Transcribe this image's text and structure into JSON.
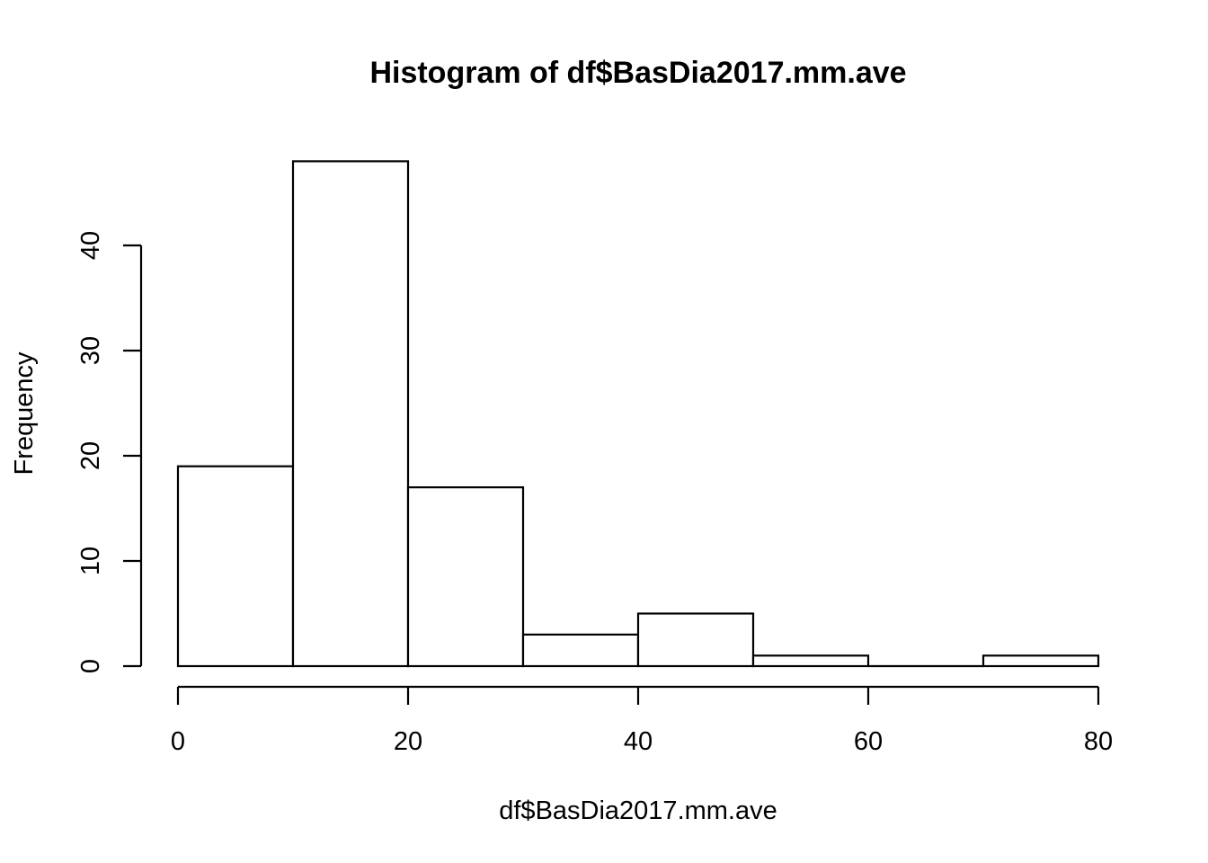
{
  "chart_data": {
    "type": "bar",
    "title": "Histogram of df$BasDia2017.mm.ave",
    "xlabel": "df$BasDia2017.mm.ave",
    "ylabel": "Frequency",
    "bins": [
      {
        "start": 0,
        "end": 10,
        "count": 19
      },
      {
        "start": 10,
        "end": 20,
        "count": 48
      },
      {
        "start": 20,
        "end": 30,
        "count": 17
      },
      {
        "start": 30,
        "end": 40,
        "count": 3
      },
      {
        "start": 40,
        "end": 50,
        "count": 5
      },
      {
        "start": 50,
        "end": 60,
        "count": 1
      },
      {
        "start": 60,
        "end": 70,
        "count": 0
      },
      {
        "start": 70,
        "end": 80,
        "count": 1
      }
    ],
    "xlim": [
      0,
      80
    ],
    "ylim": [
      0,
      48
    ],
    "x_ticks": [
      "0",
      "20",
      "40",
      "60",
      "80"
    ],
    "y_ticks": [
      "0",
      "10",
      "20",
      "30",
      "40"
    ],
    "grid": false,
    "colors": {
      "fill": "#ffffff",
      "stroke": "#000000"
    }
  }
}
